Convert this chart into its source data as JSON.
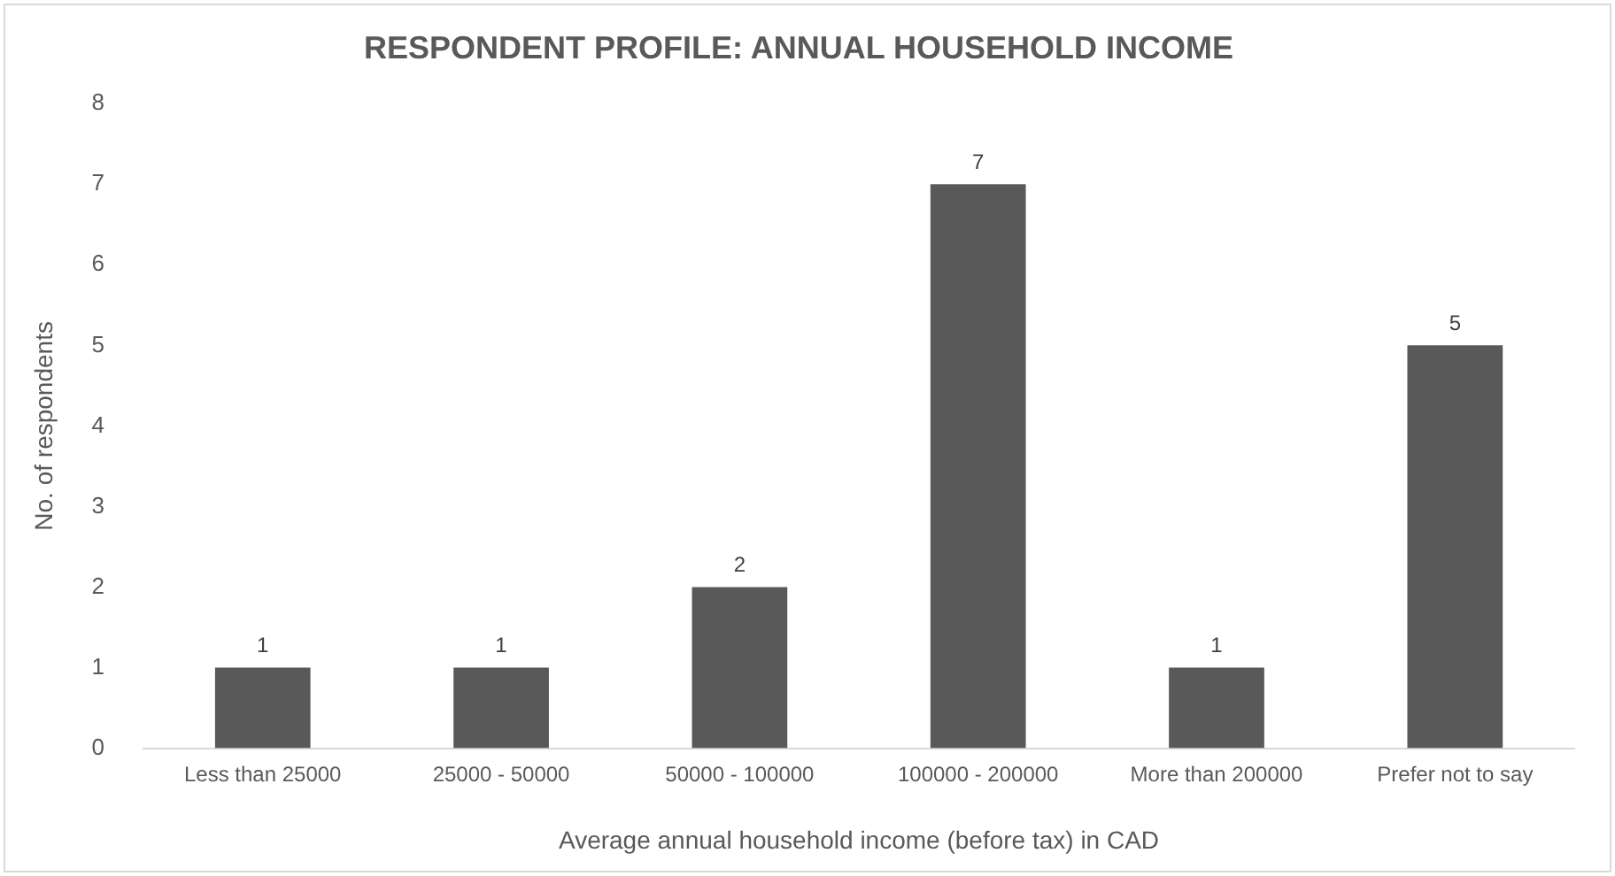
{
  "chart_data": {
    "type": "bar",
    "title": "RESPONDENT PROFILE: ANNUAL HOUSEHOLD INCOME",
    "xlabel": "Average annual household income (before tax) in CAD",
    "ylabel": "No. of respondents",
    "categories": [
      "Less than 25000",
      "25000 - 50000",
      "50000 - 100000",
      "100000 - 200000",
      "More than 200000",
      "Prefer not to say"
    ],
    "values": [
      1,
      1,
      2,
      7,
      1,
      5
    ],
    "color": "#595959",
    "ylim": [
      0,
      8
    ],
    "yticks": [
      0,
      1,
      2,
      3,
      4,
      5,
      6,
      7,
      8
    ],
    "grid": false,
    "legend": false,
    "data_labels": true
  }
}
